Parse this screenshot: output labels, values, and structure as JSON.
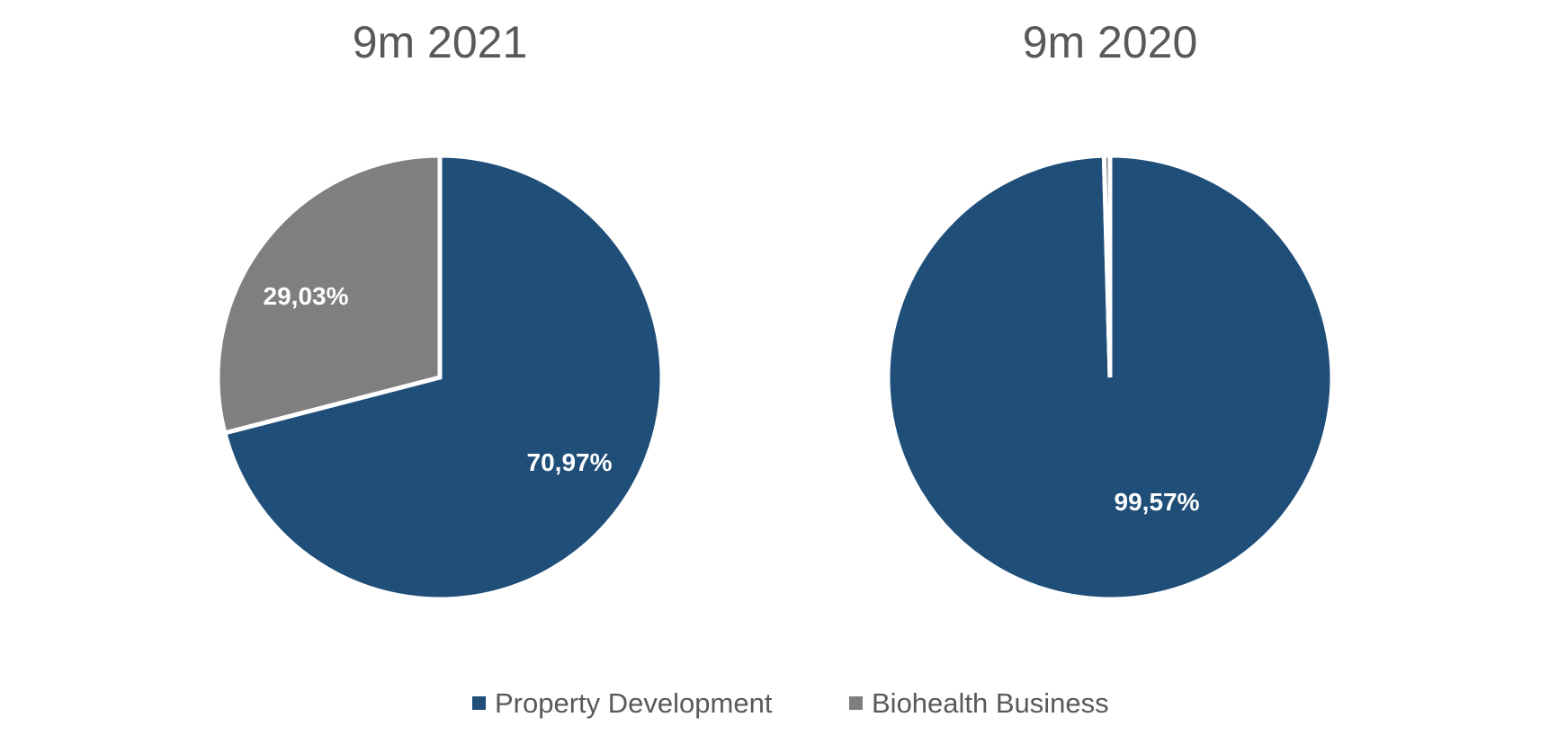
{
  "chart_data": [
    {
      "type": "pie",
      "title": "9m 2021",
      "series": [
        {
          "name": "Property Development",
          "value": 70.97,
          "label": "70,97%"
        },
        {
          "name": "Biohealth Business",
          "value": 29.03,
          "label": "29,03%"
        }
      ]
    },
    {
      "type": "pie",
      "title": "9m 2020",
      "series": [
        {
          "name": "Property Development",
          "value": 99.57,
          "label": "99,57%"
        },
        {
          "name": "Biohealth Business",
          "value": 0.43,
          "label": ""
        }
      ]
    }
  ],
  "legend": {
    "placement": "bottom-center",
    "items": [
      {
        "name": "Property Development",
        "color": "#1F4E79"
      },
      {
        "name": "Biohealth Business",
        "color": "#7F7F7F"
      }
    ]
  },
  "colors": {
    "Property Development": "#1F4E79",
    "Biohealth Business": "#7F7F7F",
    "slice_border": "#ffffff"
  }
}
